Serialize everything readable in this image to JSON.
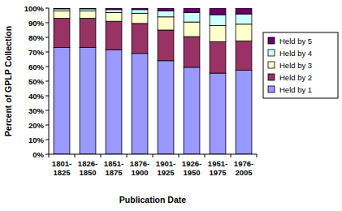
{
  "chart_data": {
    "type": "bar",
    "stacked": true,
    "grid": false,
    "legend": "right",
    "x_label": "Publication Date",
    "y_label": "Percent of GPLP Collection",
    "categories": [
      "1801-1825",
      "1826-1850",
      "1851-1875",
      "1876-1900",
      "1901-1925",
      "1926-1950",
      "1951-1975",
      "1976-2005"
    ],
    "ylim": [
      0,
      100
    ],
    "yticks": [
      {
        "value": 0,
        "label": "0%"
      },
      {
        "value": 10,
        "label": "10%"
      },
      {
        "value": 20,
        "label": "20%"
      },
      {
        "value": 30,
        "label": "30%"
      },
      {
        "value": 40,
        "label": "40%"
      },
      {
        "value": 50,
        "label": "50%"
      },
      {
        "value": 60,
        "label": "60%"
      },
      {
        "value": 70,
        "label": "70%"
      },
      {
        "value": 80,
        "label": "80%"
      },
      {
        "value": 90,
        "label": "90%"
      },
      {
        "value": 100,
        "label": "100%"
      }
    ],
    "series": [
      {
        "name": "Held by 1",
        "color": "#9999ff",
        "values": [
          73,
          73,
          71.5,
          69,
          64,
          59.5,
          55.5,
          57.5
        ]
      },
      {
        "name": "Held by 2",
        "color": "#993366",
        "values": [
          20,
          20,
          19.5,
          20.5,
          21,
          21,
          21.5,
          20
        ]
      },
      {
        "name": "Held by 3",
        "color": "#ffffcc",
        "values": [
          5,
          5,
          6,
          7,
          9,
          10,
          11,
          11.5
        ]
      },
      {
        "name": "Held by 4",
        "color": "#ccffff",
        "values": [
          1.5,
          1.5,
          2,
          2.5,
          4,
          6.5,
          7.5,
          7
        ]
      },
      {
        "name": "Held by 5",
        "color": "#660066",
        "values": [
          0.5,
          0.5,
          1,
          1,
          2,
          3,
          4.5,
          4
        ]
      }
    ]
  }
}
